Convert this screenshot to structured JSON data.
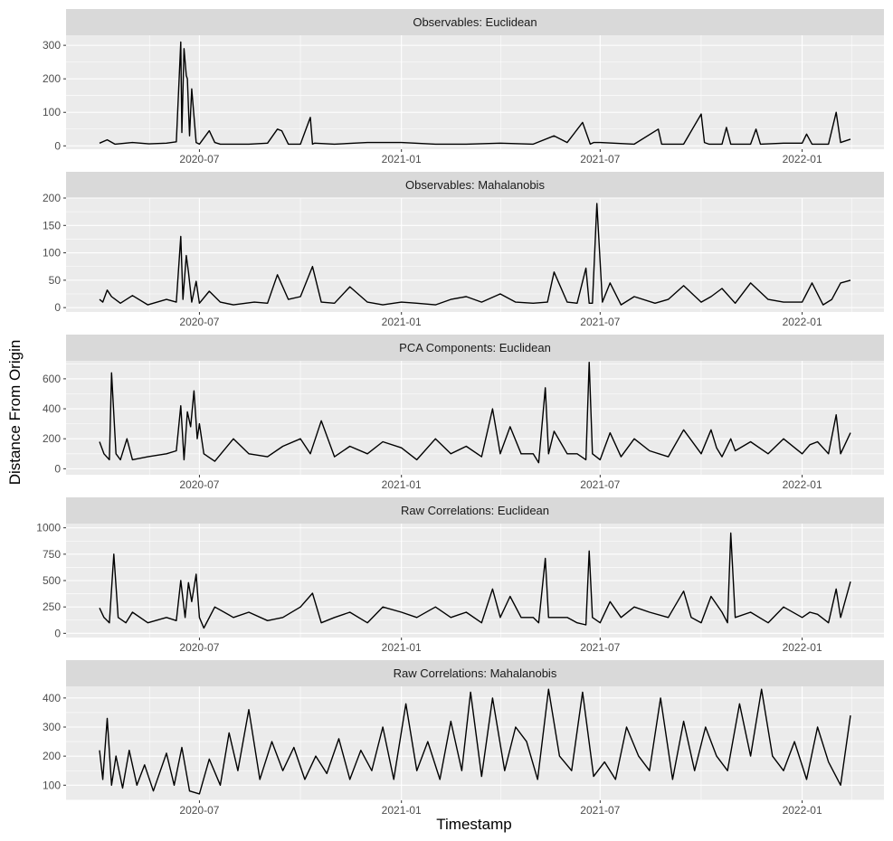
{
  "chart_data": {
    "type": "line",
    "layout": "facet-grid-5x1",
    "xlabel": "Timestamp",
    "ylabel": "Distance From Origin",
    "x_range": [
      "2020-04-01",
      "2022-02-14"
    ],
    "x_ticks": [
      "2020-07",
      "2021-01",
      "2021-07",
      "2022-01"
    ],
    "grid": true,
    "panels": [
      {
        "title": "Observables: Euclidean",
        "ylim": [
          -10,
          330
        ],
        "y_ticks": [
          0,
          100,
          200,
          300
        ],
        "x": [
          "2020-04-01",
          "2020-04-08",
          "2020-04-15",
          "2020-05-01",
          "2020-05-16",
          "2020-06-01",
          "2020-06-10",
          "2020-06-14",
          "2020-06-15",
          "2020-06-17",
          "2020-06-19",
          "2020-06-20",
          "2020-06-22",
          "2020-06-24",
          "2020-06-28",
          "2020-07-01",
          "2020-07-10",
          "2020-07-15",
          "2020-07-20",
          "2020-08-01",
          "2020-08-15",
          "2020-09-01",
          "2020-09-10",
          "2020-09-14",
          "2020-09-20",
          "2020-10-01",
          "2020-10-10",
          "2020-10-12",
          "2020-10-14",
          "2020-11-01",
          "2020-12-01",
          "2021-01-01",
          "2021-02-01",
          "2021-03-01",
          "2021-04-01",
          "2021-05-01",
          "2021-05-20",
          "2021-06-01",
          "2021-06-15",
          "2021-06-22",
          "2021-06-25",
          "2021-07-01",
          "2021-08-01",
          "2021-08-23",
          "2021-08-26",
          "2021-09-15",
          "2021-10-01",
          "2021-10-04",
          "2021-10-08",
          "2021-10-20",
          "2021-10-24",
          "2021-10-28",
          "2021-11-15",
          "2021-11-20",
          "2021-11-24",
          "2021-12-15",
          "2022-01-01",
          "2022-01-05",
          "2022-01-10",
          "2022-01-15",
          "2022-01-25",
          "2022-02-01",
          "2022-02-05",
          "2022-02-14"
        ],
        "y": [
          8,
          18,
          5,
          10,
          6,
          8,
          12,
          310,
          40,
          290,
          210,
          200,
          30,
          170,
          10,
          5,
          45,
          10,
          5,
          5,
          5,
          8,
          50,
          45,
          5,
          5,
          85,
          5,
          8,
          5,
          10,
          10,
          5,
          5,
          8,
          5,
          30,
          10,
          70,
          5,
          10,
          10,
          5,
          50,
          5,
          5,
          95,
          10,
          5,
          5,
          55,
          5,
          5,
          50,
          5,
          8,
          8,
          35,
          5,
          5,
          5,
          100,
          10,
          20
        ]
      },
      {
        "title": "Observables: Mahalanobis",
        "ylim": [
          -8,
          200
        ],
        "y_ticks": [
          0,
          50,
          100,
          150,
          200
        ],
        "x": [
          "2020-04-01",
          "2020-04-04",
          "2020-04-08",
          "2020-04-12",
          "2020-04-20",
          "2020-05-01",
          "2020-05-15",
          "2020-06-01",
          "2020-06-10",
          "2020-06-14",
          "2020-06-16",
          "2020-06-19",
          "2020-06-21",
          "2020-06-24",
          "2020-06-28",
          "2020-07-01",
          "2020-07-10",
          "2020-07-20",
          "2020-08-01",
          "2020-08-20",
          "2020-09-01",
          "2020-09-10",
          "2020-09-20",
          "2020-10-01",
          "2020-10-12",
          "2020-10-20",
          "2020-11-01",
          "2020-11-15",
          "2020-12-01",
          "2020-12-15",
          "2021-01-01",
          "2021-01-15",
          "2021-02-01",
          "2021-02-15",
          "2021-03-01",
          "2021-03-15",
          "2021-04-01",
          "2021-04-15",
          "2021-05-01",
          "2021-05-14",
          "2021-05-20",
          "2021-06-01",
          "2021-06-10",
          "2021-06-18",
          "2021-06-21",
          "2021-06-24",
          "2021-06-28",
          "2021-07-03",
          "2021-07-10",
          "2021-07-20",
          "2021-08-01",
          "2021-08-20",
          "2021-09-01",
          "2021-09-15",
          "2021-10-01",
          "2021-10-10",
          "2021-10-20",
          "2021-11-01",
          "2021-11-15",
          "2021-12-01",
          "2021-12-15",
          "2022-01-01",
          "2022-01-10",
          "2022-01-20",
          "2022-01-28",
          "2022-02-05",
          "2022-02-14"
        ],
        "y": [
          15,
          10,
          32,
          20,
          8,
          22,
          5,
          15,
          10,
          130,
          15,
          95,
          65,
          10,
          48,
          8,
          30,
          10,
          5,
          10,
          8,
          60,
          15,
          20,
          75,
          10,
          8,
          38,
          10,
          5,
          10,
          8,
          5,
          15,
          20,
          10,
          25,
          10,
          8,
          10,
          65,
          10,
          8,
          72,
          8,
          8,
          190,
          10,
          45,
          5,
          20,
          8,
          15,
          40,
          10,
          20,
          35,
          8,
          45,
          15,
          10,
          10,
          45,
          5,
          15,
          45,
          50
        ]
      },
      {
        "title": "PCA Components: Euclidean",
        "ylim": [
          -40,
          720
        ],
        "y_ticks": [
          0,
          200,
          400,
          600
        ],
        "x": [
          "2020-04-01",
          "2020-04-05",
          "2020-04-10",
          "2020-04-12",
          "2020-04-16",
          "2020-04-20",
          "2020-04-26",
          "2020-05-01",
          "2020-05-15",
          "2020-06-01",
          "2020-06-10",
          "2020-06-14",
          "2020-06-17",
          "2020-06-20",
          "2020-06-23",
          "2020-06-26",
          "2020-06-29",
          "2020-07-01",
          "2020-07-05",
          "2020-07-15",
          "2020-08-01",
          "2020-08-15",
          "2020-09-01",
          "2020-09-15",
          "2020-10-01",
          "2020-10-10",
          "2020-10-20",
          "2020-11-01",
          "2020-11-15",
          "2020-12-01",
          "2020-12-15",
          "2021-01-01",
          "2021-01-15",
          "2021-02-01",
          "2021-02-15",
          "2021-03-01",
          "2021-03-15",
          "2021-03-25",
          "2021-04-01",
          "2021-04-10",
          "2021-04-20",
          "2021-05-01",
          "2021-05-06",
          "2021-05-12",
          "2021-05-15",
          "2021-05-20",
          "2021-06-01",
          "2021-06-10",
          "2021-06-18",
          "2021-06-21",
          "2021-06-24",
          "2021-07-01",
          "2021-07-10",
          "2021-07-20",
          "2021-08-01",
          "2021-08-15",
          "2021-09-01",
          "2021-09-15",
          "2021-10-01",
          "2021-10-10",
          "2021-10-15",
          "2021-10-20",
          "2021-10-28",
          "2021-11-01",
          "2021-11-15",
          "2021-12-01",
          "2021-12-15",
          "2022-01-01",
          "2022-01-08",
          "2022-01-15",
          "2022-01-25",
          "2022-02-01",
          "2022-02-05",
          "2022-02-14"
        ],
        "y": [
          180,
          100,
          60,
          640,
          100,
          60,
          200,
          60,
          80,
          100,
          120,
          420,
          60,
          380,
          280,
          520,
          200,
          300,
          100,
          50,
          200,
          100,
          80,
          150,
          200,
          100,
          320,
          80,
          150,
          100,
          180,
          140,
          60,
          200,
          100,
          150,
          80,
          400,
          100,
          280,
          100,
          100,
          40,
          540,
          100,
          250,
          100,
          100,
          60,
          710,
          100,
          60,
          240,
          80,
          200,
          120,
          80,
          260,
          100,
          260,
          140,
          80,
          200,
          120,
          180,
          100,
          200,
          100,
          160,
          180,
          100,
          360,
          100,
          240
        ]
      },
      {
        "title": "Raw Correlations: Euclidean",
        "ylim": [
          -40,
          1040
        ],
        "y_ticks": [
          0,
          250,
          500,
          750,
          1000
        ],
        "x": [
          "2020-04-01",
          "2020-04-05",
          "2020-04-10",
          "2020-04-14",
          "2020-04-18",
          "2020-04-25",
          "2020-05-01",
          "2020-05-15",
          "2020-06-01",
          "2020-06-10",
          "2020-06-14",
          "2020-06-18",
          "2020-06-21",
          "2020-06-24",
          "2020-06-28",
          "2020-07-01",
          "2020-07-05",
          "2020-07-15",
          "2020-08-01",
          "2020-08-15",
          "2020-09-01",
          "2020-09-15",
          "2020-10-01",
          "2020-10-12",
          "2020-10-20",
          "2020-11-01",
          "2020-11-15",
          "2020-12-01",
          "2020-12-15",
          "2021-01-01",
          "2021-01-15",
          "2021-02-01",
          "2021-02-15",
          "2021-03-01",
          "2021-03-15",
          "2021-03-25",
          "2021-04-01",
          "2021-04-10",
          "2021-04-20",
          "2021-05-01",
          "2021-05-06",
          "2021-05-12",
          "2021-05-15",
          "2021-05-20",
          "2021-06-01",
          "2021-06-10",
          "2021-06-18",
          "2021-06-21",
          "2021-06-24",
          "2021-07-01",
          "2021-07-10",
          "2021-07-20",
          "2021-08-01",
          "2021-08-15",
          "2021-09-01",
          "2021-09-15",
          "2021-09-22",
          "2021-10-01",
          "2021-10-10",
          "2021-10-20",
          "2021-10-25",
          "2021-10-28",
          "2021-11-01",
          "2021-11-15",
          "2021-12-01",
          "2021-12-15",
          "2022-01-01",
          "2022-01-08",
          "2022-01-15",
          "2022-01-25",
          "2022-02-01",
          "2022-02-05",
          "2022-02-14"
        ],
        "y": [
          240,
          150,
          100,
          750,
          150,
          100,
          200,
          100,
          150,
          120,
          500,
          150,
          480,
          300,
          560,
          150,
          50,
          250,
          150,
          200,
          120,
          150,
          250,
          380,
          100,
          150,
          200,
          100,
          250,
          200,
          150,
          250,
          150,
          200,
          100,
          420,
          150,
          350,
          150,
          150,
          100,
          710,
          150,
          150,
          150,
          100,
          80,
          780,
          150,
          100,
          300,
          150,
          250,
          200,
          150,
          400,
          150,
          100,
          350,
          200,
          100,
          950,
          150,
          200,
          100,
          250,
          150,
          200,
          180,
          100,
          420,
          150,
          490
        ]
      },
      {
        "title": "Raw Correlations: Mahalanobis",
        "ylim": [
          48,
          440
        ],
        "y_ticks": [
          100,
          200,
          300,
          400
        ],
        "x": [
          "2020-04-01",
          "2020-04-04",
          "2020-04-08",
          "2020-04-12",
          "2020-04-16",
          "2020-04-22",
          "2020-04-28",
          "2020-05-05",
          "2020-05-12",
          "2020-05-20",
          "2020-06-01",
          "2020-06-08",
          "2020-06-15",
          "2020-06-22",
          "2020-07-01",
          "2020-07-10",
          "2020-07-20",
          "2020-07-28",
          "2020-08-05",
          "2020-08-15",
          "2020-08-25",
          "2020-09-05",
          "2020-09-15",
          "2020-09-25",
          "2020-10-05",
          "2020-10-15",
          "2020-10-25",
          "2020-11-05",
          "2020-11-15",
          "2020-11-25",
          "2020-12-05",
          "2020-12-15",
          "2020-12-25",
          "2021-01-05",
          "2021-01-15",
          "2021-01-25",
          "2021-02-05",
          "2021-02-15",
          "2021-02-25",
          "2021-03-05",
          "2021-03-15",
          "2021-03-25",
          "2021-04-05",
          "2021-04-15",
          "2021-04-25",
          "2021-05-05",
          "2021-05-15",
          "2021-05-25",
          "2021-06-05",
          "2021-06-15",
          "2021-06-25",
          "2021-07-05",
          "2021-07-15",
          "2021-07-25",
          "2021-08-05",
          "2021-08-15",
          "2021-08-25",
          "2021-09-05",
          "2021-09-15",
          "2021-09-25",
          "2021-10-05",
          "2021-10-15",
          "2021-10-25",
          "2021-11-05",
          "2021-11-15",
          "2021-11-25",
          "2021-12-05",
          "2021-12-15",
          "2021-12-25",
          "2022-01-05",
          "2022-01-15",
          "2022-01-25",
          "2022-02-05",
          "2022-02-14"
        ],
        "y": [
          220,
          120,
          330,
          100,
          200,
          90,
          220,
          100,
          170,
          80,
          210,
          100,
          230,
          80,
          70,
          190,
          100,
          280,
          150,
          360,
          120,
          250,
          150,
          230,
          120,
          200,
          140,
          260,
          120,
          220,
          150,
          300,
          120,
          380,
          150,
          250,
          120,
          320,
          150,
          420,
          130,
          400,
          150,
          300,
          250,
          120,
          430,
          200,
          150,
          420,
          130,
          180,
          120,
          300,
          200,
          150,
          400,
          120,
          320,
          150,
          300,
          200,
          150,
          380,
          200,
          430,
          200,
          150,
          250,
          120,
          300,
          180,
          100,
          340
        ]
      }
    ]
  }
}
